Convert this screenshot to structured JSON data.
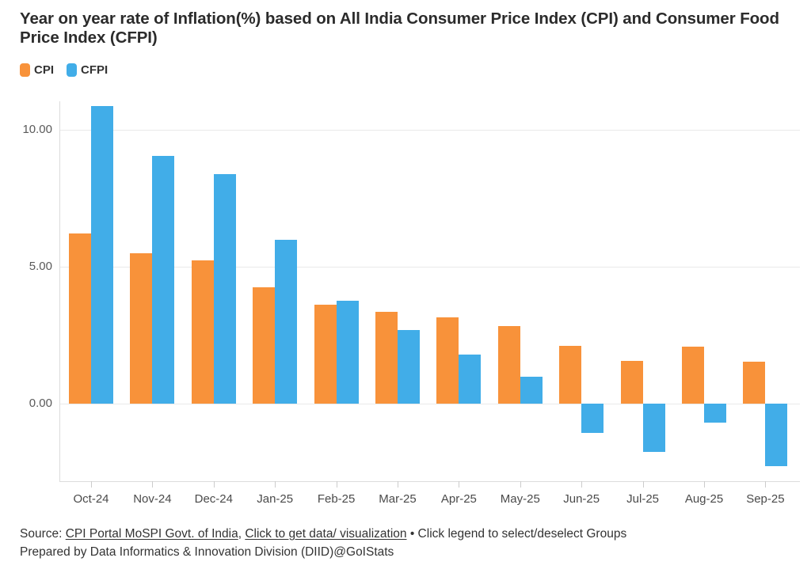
{
  "title": "Year on year rate of Inflation(%) based on All India Consumer Price Index (CPI) and Consumer Food Price Index (CFPI)",
  "legend": {
    "items": [
      {
        "label": "CPI",
        "color": "#F8923A"
      },
      {
        "label": "CFPI",
        "color": "#41ADE8"
      }
    ]
  },
  "chart_data": {
    "type": "bar",
    "title": "Year on year rate of Inflation(%) based on All India Consumer Price Index (CPI) and Consumer Food Price Index (CFPI)",
    "categories": [
      "Oct-24",
      "Nov-24",
      "Dec-24",
      "Jan-25",
      "Feb-25",
      "Mar-25",
      "Apr-25",
      "May-25",
      "Jun-25",
      "Jul-25",
      "Aug-25",
      "Sep-25"
    ],
    "series": [
      {
        "name": "CPI",
        "color": "#F8923A",
        "values": [
          6.21,
          5.48,
          5.22,
          4.26,
          3.61,
          3.34,
          3.16,
          2.82,
          2.1,
          1.55,
          2.07,
          1.54
        ]
      },
      {
        "name": "CFPI",
        "color": "#41ADE8",
        "values": [
          10.87,
          9.04,
          8.39,
          5.97,
          3.75,
          2.69,
          1.78,
          0.99,
          -1.06,
          -1.76,
          -0.69,
          -2.28
        ]
      }
    ],
    "xlabel": "",
    "ylabel": "",
    "ylim": [
      -2.85,
      11.0
    ],
    "yticks": [
      {
        "value": 0,
        "label": "0.00"
      },
      {
        "value": 5,
        "label": "5.00"
      },
      {
        "value": 10,
        "label": "10.00"
      }
    ],
    "grid": true,
    "legend_position": "top-left"
  },
  "footer": {
    "source_label": "Source: ",
    "links": [
      {
        "text": "CPI Portal MoSPI Govt. of India"
      },
      {
        "text": "Click to get data/ visualization"
      }
    ],
    "link_separator": ", ",
    "legend_hint": " • Click legend to select/deselect Groups",
    "prepared_by": "Prepared by Data Informatics & Innovation Division (DIID)@GoIStats"
  }
}
